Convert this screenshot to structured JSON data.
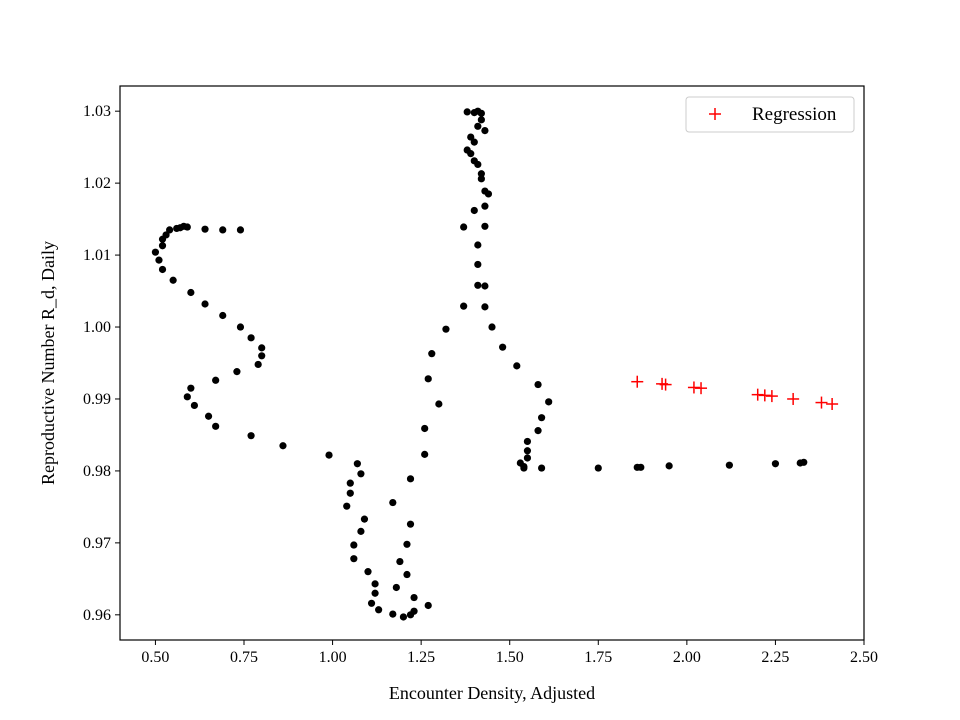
{
  "chart_data": {
    "type": "scatter",
    "xlabel": "Encounter Density, Adjusted",
    "ylabel": "Reproductive Number R_d, Daily",
    "xlim": [
      0.4,
      2.5
    ],
    "ylim": [
      0.9565,
      1.0335
    ],
    "xticks": [
      0.5,
      0.75,
      1.0,
      1.25,
      1.5,
      1.75,
      2.0,
      2.25,
      2.5
    ],
    "xtick_labels": [
      "0.50",
      "0.75",
      "1.00",
      "1.25",
      "1.50",
      "1.75",
      "2.00",
      "2.25",
      "2.50"
    ],
    "yticks": [
      0.96,
      0.97,
      0.98,
      0.99,
      1.0,
      1.01,
      1.02,
      1.03
    ],
    "ytick_labels": [
      "0.96",
      "0.97",
      "0.98",
      "0.99",
      "1.00",
      "1.01",
      "1.02",
      "1.03"
    ],
    "grid": false,
    "legend_position": "top-right",
    "series": [
      {
        "marker": "dot",
        "color": "#000000",
        "points": [
          [
            0.74,
            1.0135
          ],
          [
            0.69,
            1.0135
          ],
          [
            0.64,
            1.0136
          ],
          [
            0.59,
            1.0139
          ],
          [
            0.58,
            1.014
          ],
          [
            0.57,
            1.0138
          ],
          [
            0.56,
            1.0137
          ],
          [
            0.54,
            1.0135
          ],
          [
            0.53,
            1.0128
          ],
          [
            0.52,
            1.0122
          ],
          [
            0.52,
            1.0113
          ],
          [
            0.5,
            1.0104
          ],
          [
            0.51,
            1.0093
          ],
          [
            0.52,
            1.008
          ],
          [
            0.55,
            1.0065
          ],
          [
            0.6,
            1.0048
          ],
          [
            0.64,
            1.0032
          ],
          [
            0.69,
            1.0016
          ],
          [
            0.74,
            1.0
          ],
          [
            0.77,
            0.9985
          ],
          [
            0.8,
            0.9971
          ],
          [
            0.8,
            0.996
          ],
          [
            0.79,
            0.9948
          ],
          [
            0.73,
            0.9938
          ],
          [
            0.67,
            0.9926
          ],
          [
            0.6,
            0.9915
          ],
          [
            0.59,
            0.9903
          ],
          [
            0.61,
            0.9891
          ],
          [
            0.65,
            0.9876
          ],
          [
            0.67,
            0.9862
          ],
          [
            0.77,
            0.9849
          ],
          [
            0.86,
            0.9835
          ],
          [
            0.99,
            0.9822
          ],
          [
            1.07,
            0.981
          ],
          [
            1.08,
            0.9796
          ],
          [
            1.05,
            0.9783
          ],
          [
            1.05,
            0.9769
          ],
          [
            1.04,
            0.9751
          ],
          [
            1.09,
            0.9733
          ],
          [
            1.08,
            0.9716
          ],
          [
            1.06,
            0.9697
          ],
          [
            1.06,
            0.9678
          ],
          [
            1.1,
            0.966
          ],
          [
            1.12,
            0.9643
          ],
          [
            1.12,
            0.963
          ],
          [
            1.11,
            0.9616
          ],
          [
            1.13,
            0.9607
          ],
          [
            1.17,
            0.9601
          ],
          [
            1.2,
            0.9597
          ],
          [
            1.22,
            0.96
          ],
          [
            1.23,
            0.9605
          ],
          [
            1.27,
            0.9613
          ],
          [
            1.23,
            0.9624
          ],
          [
            1.18,
            0.9638
          ],
          [
            1.21,
            0.9656
          ],
          [
            1.19,
            0.9674
          ],
          [
            1.21,
            0.9698
          ],
          [
            1.22,
            0.9726
          ],
          [
            1.17,
            0.9756
          ],
          [
            1.22,
            0.9789
          ],
          [
            1.26,
            0.9823
          ],
          [
            1.26,
            0.9859
          ],
          [
            1.3,
            0.9893
          ],
          [
            1.27,
            0.9928
          ],
          [
            1.28,
            0.9963
          ],
          [
            1.32,
            0.9997
          ],
          [
            1.37,
            1.0029
          ],
          [
            1.37,
            1.0139
          ],
          [
            1.4,
            1.0162
          ],
          [
            1.41,
            1.0087
          ],
          [
            1.41,
            1.0114
          ],
          [
            1.41,
            1.0058
          ],
          [
            1.43,
            1.0057
          ],
          [
            1.43,
            1.0028
          ],
          [
            1.45,
            1.0
          ],
          [
            1.48,
            0.9972
          ],
          [
            1.52,
            0.9946
          ],
          [
            1.58,
            0.992
          ],
          [
            1.61,
            0.9896
          ],
          [
            1.59,
            0.9874
          ],
          [
            1.58,
            0.9856
          ],
          [
            1.55,
            0.9841
          ],
          [
            1.55,
            0.9828
          ],
          [
            1.55,
            0.9818
          ],
          [
            1.53,
            0.9811
          ],
          [
            1.54,
            0.9806
          ],
          [
            1.54,
            0.9804
          ],
          [
            1.59,
            0.9804
          ],
          [
            1.75,
            0.9804
          ],
          [
            1.86,
            0.9805
          ],
          [
            1.87,
            0.9805
          ],
          [
            1.95,
            0.9807
          ],
          [
            2.12,
            0.9808
          ],
          [
            2.25,
            0.981
          ],
          [
            2.32,
            0.9811
          ],
          [
            2.33,
            0.9812
          ],
          [
            1.42,
            1.0297
          ],
          [
            1.42,
            1.0288
          ],
          [
            1.41,
            1.0279
          ],
          [
            1.4,
            1.0298
          ],
          [
            1.38,
            1.0299
          ],
          [
            1.41,
            1.03
          ],
          [
            1.43,
            1.0273
          ],
          [
            1.39,
            1.0264
          ],
          [
            1.4,
            1.0257
          ],
          [
            1.38,
            1.0246
          ],
          [
            1.39,
            1.0241
          ],
          [
            1.4,
            1.0231
          ],
          [
            1.41,
            1.0226
          ],
          [
            1.42,
            1.0213
          ],
          [
            1.42,
            1.0206
          ],
          [
            1.43,
            1.0189
          ],
          [
            1.44,
            1.0185
          ],
          [
            1.43,
            1.0168
          ],
          [
            1.43,
            1.014
          ]
        ]
      },
      {
        "name": "Regression",
        "marker": "plus",
        "color": "#ff0000",
        "points": [
          [
            1.86,
            0.9924
          ],
          [
            1.93,
            0.9921
          ],
          [
            1.94,
            0.992
          ],
          [
            2.02,
            0.9916
          ],
          [
            2.04,
            0.9915
          ],
          [
            2.2,
            0.9906
          ],
          [
            2.22,
            0.9905
          ],
          [
            2.24,
            0.9904
          ],
          [
            2.3,
            0.99
          ],
          [
            2.38,
            0.9895
          ],
          [
            2.41,
            0.9893
          ]
        ]
      }
    ]
  }
}
